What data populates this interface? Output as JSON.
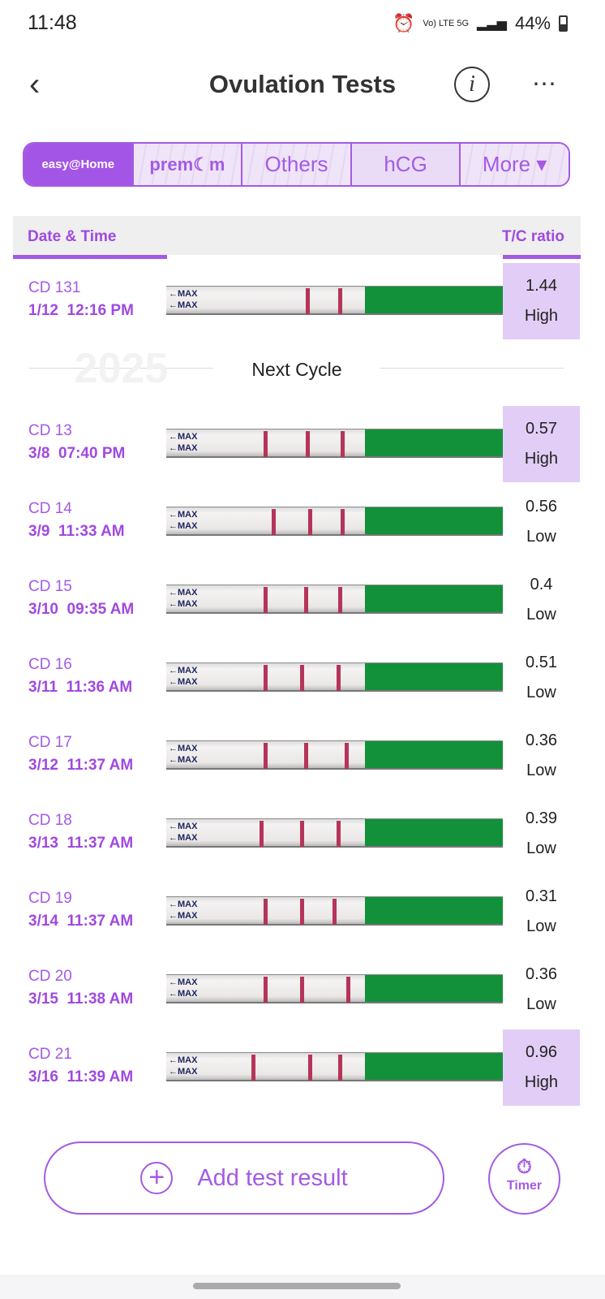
{
  "status": {
    "time": "11:48",
    "network": "Vo) LTE 5G",
    "battery": "44%"
  },
  "header": {
    "title": "Ovulation Tests",
    "info": "i",
    "more": "⋯",
    "back": "‹"
  },
  "tabs": [
    "easy@Home",
    "prem☾m",
    "Others",
    "hCG",
    "More ▾"
  ],
  "table": {
    "col_left": "Date & Time",
    "col_right": "T/C ratio"
  },
  "divider": {
    "label": "Next Cycle",
    "watermark": "2025"
  },
  "strip_label": "←MAX",
  "rows": [
    {
      "cd": "CD 131",
      "date": "1/12  12:16 PM",
      "ratio": "1.44",
      "level": "High",
      "high": true
    },
    {
      "cd": "CD 13",
      "date": "3/8  07:40 PM",
      "ratio": "0.57",
      "level": "High",
      "high": true
    },
    {
      "cd": "CD 14",
      "date": "3/9  11:33 AM",
      "ratio": "0.56",
      "level": "Low",
      "high": false
    },
    {
      "cd": "CD 15",
      "date": "3/10  09:35 AM",
      "ratio": "0.4",
      "level": "Low",
      "high": false
    },
    {
      "cd": "CD 16",
      "date": "3/11  11:36 AM",
      "ratio": "0.51",
      "level": "Low",
      "high": false
    },
    {
      "cd": "CD 17",
      "date": "3/12  11:37 AM",
      "ratio": "0.36",
      "level": "Low",
      "high": false
    },
    {
      "cd": "CD 18",
      "date": "3/13  11:37 AM",
      "ratio": "0.39",
      "level": "Low",
      "high": false
    },
    {
      "cd": "CD 19",
      "date": "3/14  11:37 AM",
      "ratio": "0.31",
      "level": "Low",
      "high": false
    },
    {
      "cd": "CD 20",
      "date": "3/15  11:38 AM",
      "ratio": "0.36",
      "level": "Low",
      "high": false
    },
    {
      "cd": "CD 21",
      "date": "3/16  11:39 AM",
      "ratio": "0.96",
      "level": "High",
      "high": true
    }
  ],
  "actions": {
    "add": "Add test result",
    "plus": "+",
    "timer": "Timer",
    "timer_icon": "⏱"
  },
  "colors": {
    "accent": "#a35be3",
    "highlight": "#e2cdf6",
    "strip_green": "#12913a"
  }
}
